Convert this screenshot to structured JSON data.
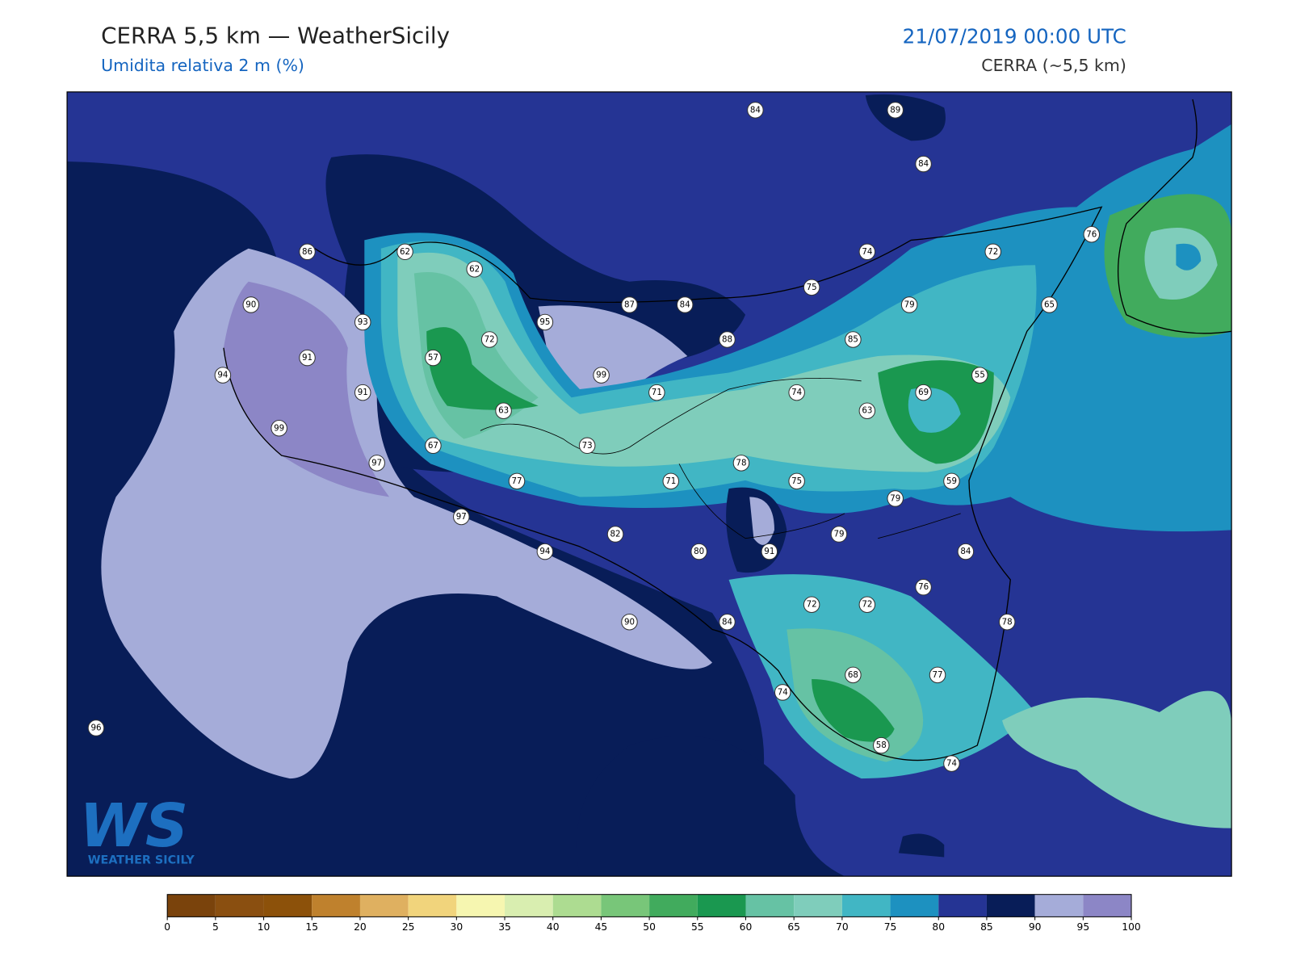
{
  "header": {
    "title": "CERRA 5,5 km — WeatherSicily",
    "subtitle": "Umidita relativa 2 m (%)",
    "datetime": "21/07/2019 00:00 UTC",
    "source": "CERRA (~5,5 km)"
  },
  "logo": {
    "mark": "WS",
    "text": "WEATHER SICILY"
  },
  "stations": [
    84,
    89,
    84,
    86,
    62,
    62,
    76,
    74,
    72,
    90,
    87,
    84,
    79,
    65,
    75,
    93,
    95,
    72,
    88,
    85,
    91,
    57,
    99,
    94,
    55,
    71,
    74,
    69,
    91,
    63,
    63,
    99,
    67,
    73,
    97,
    78,
    77,
    71,
    75,
    59,
    79,
    97,
    82,
    79,
    94,
    80,
    91,
    84,
    76,
    72,
    72,
    90,
    84,
    78,
    68,
    77,
    74,
    96,
    58,
    74
  ],
  "colorbar": {
    "ticks": [
      0,
      5,
      10,
      15,
      20,
      25,
      30,
      35,
      40,
      45,
      50,
      55,
      60,
      65,
      70,
      75,
      80,
      85,
      90,
      95,
      100
    ],
    "colors": [
      "#7a430c",
      "#8a4f10",
      "#8c510a",
      "#bf812d",
      "#dfb060",
      "#f1d47c",
      "#f6f6b0",
      "#d9eeb0",
      "#addc91",
      "#78c679",
      "#41ab5d",
      "#1a9850",
      "#66c2a4",
      "#7fcdbb",
      "#41b6c4",
      "#1d91c0",
      "#253494",
      "#081d58",
      "#a5acd9",
      "#8c86c6"
    ]
  }
}
